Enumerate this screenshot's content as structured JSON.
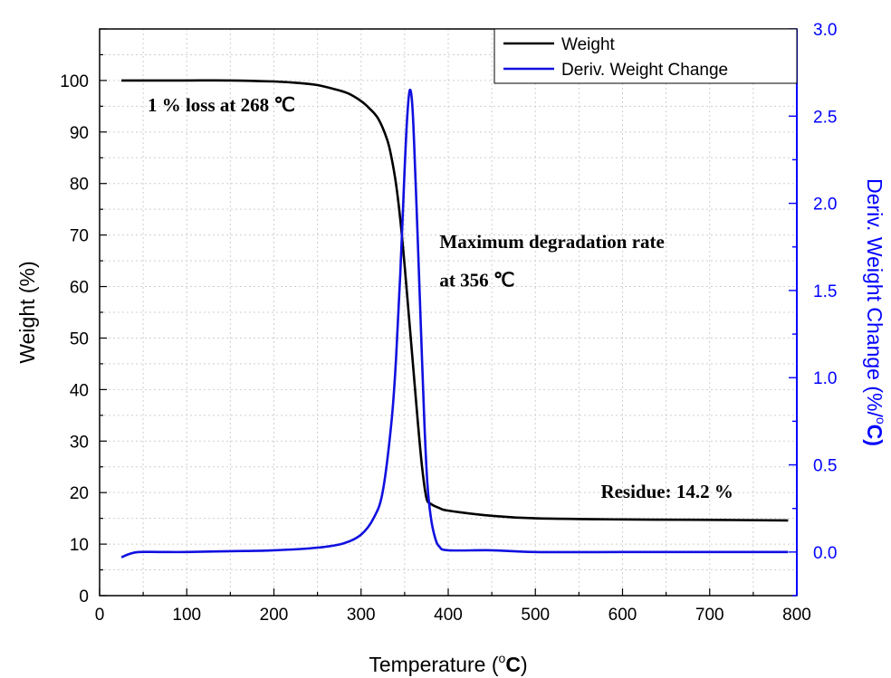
{
  "chart_data": {
    "type": "line",
    "xlabel_prefix": "Temperature (",
    "xlabel_unit_sup": "o",
    "xlabel_unit": "C",
    "xlabel_suffix": ")",
    "ylabel": "Weight (%)",
    "y2label": "Deriv. Weight Change (%/",
    "y2label_sup": "o",
    "y2label_suffix": "C)",
    "xlim": [
      0,
      800
    ],
    "ylim": [
      0,
      110
    ],
    "y2lim": [
      -0.25,
      3.0
    ],
    "xticks": [
      "0",
      "100",
      "200",
      "300",
      "400",
      "500",
      "600",
      "700",
      "800"
    ],
    "yticks": [
      "0",
      "10",
      "20",
      "30",
      "40",
      "50",
      "60",
      "70",
      "80",
      "90",
      "100"
    ],
    "y2ticks": [
      "0.0",
      "0.5",
      "1.0",
      "1.5",
      "2.0",
      "2.5",
      "3.0"
    ],
    "grid": true,
    "legend_position": "top-right",
    "colors": {
      "weight": "#000000",
      "deriv": "#1010e0",
      "right_axis": "#0000ff"
    },
    "series": [
      {
        "name": "Weight",
        "axis": "left",
        "x": [
          25,
          50,
          100,
          150,
          200,
          230,
          250,
          270,
          285,
          300,
          310,
          320,
          330,
          335,
          340,
          345,
          350,
          355,
          360,
          365,
          370,
          375,
          380,
          390,
          400,
          450,
          500,
          600,
          700,
          790
        ],
        "y": [
          100,
          100,
          100,
          100,
          99.8,
          99.5,
          99.1,
          98.3,
          97.5,
          96,
          94.5,
          92.5,
          88.5,
          85,
          80,
          73,
          64,
          54,
          44,
          34,
          25,
          19,
          17.8,
          17,
          16.5,
          15.5,
          15,
          14.8,
          14.7,
          14.6
        ]
      },
      {
        "name": "Deriv. Weight Change",
        "axis": "right",
        "x": [
          25,
          35,
          45,
          70,
          100,
          150,
          200,
          250,
          280,
          300,
          315,
          325,
          335,
          340,
          345,
          350,
          353,
          356,
          359,
          362,
          365,
          370,
          373,
          376,
          380,
          385,
          390,
          400,
          450,
          500,
          600,
          700,
          790
        ],
        "y": [
          -0.03,
          -0.01,
          0.0,
          0.0,
          0.0,
          0.005,
          0.01,
          0.025,
          0.05,
          0.1,
          0.2,
          0.35,
          0.75,
          1.1,
          1.6,
          2.2,
          2.5,
          2.65,
          2.55,
          2.2,
          1.8,
          1.1,
          0.7,
          0.4,
          0.2,
          0.08,
          0.03,
          0.01,
          0.01,
          0.0,
          0.0,
          0.0,
          0.0
        ]
      }
    ],
    "annotations": [
      {
        "text": "1 % loss at 268 ℃",
        "x": 55,
        "y": 94
      },
      {
        "text": "Maximum degradation rate",
        "x": 390,
        "y": 67.5
      },
      {
        "text": "at 356 ℃",
        "x": 390,
        "y": 60
      },
      {
        "text": "Residue: 14.2 %",
        "x": 575,
        "y": 19
      }
    ]
  }
}
